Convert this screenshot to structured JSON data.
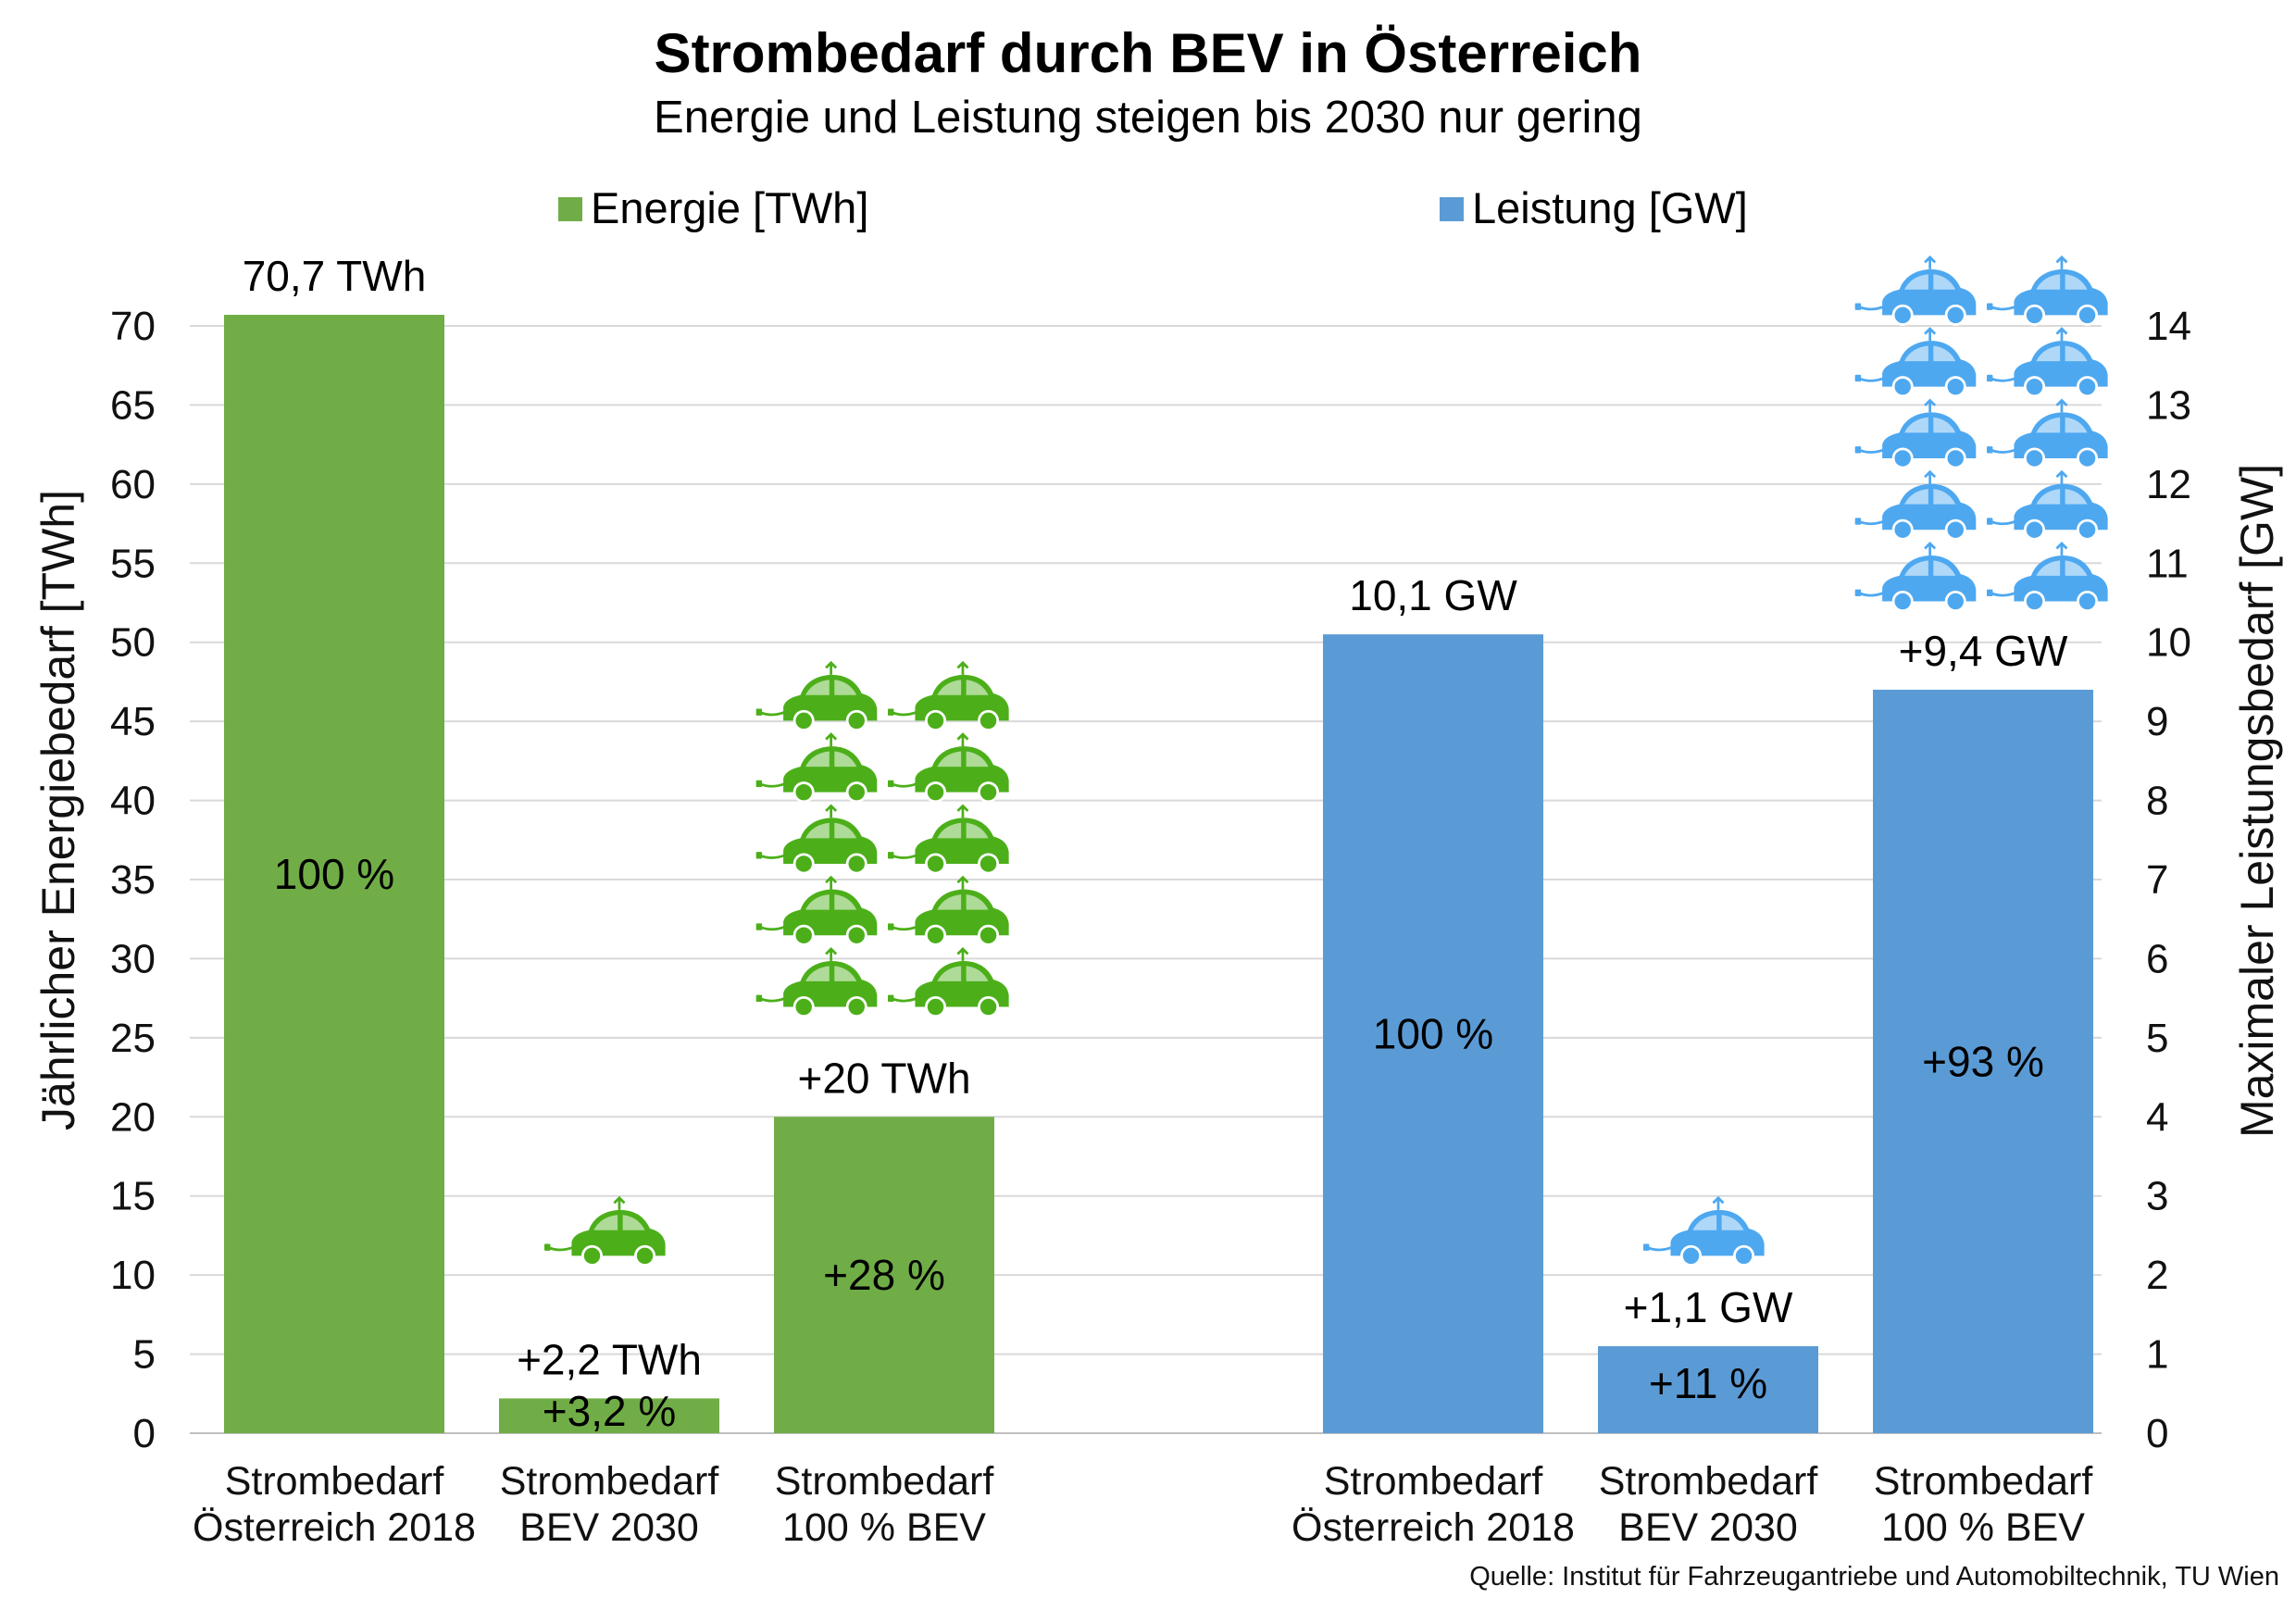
{
  "chart_data": {
    "type": "bar",
    "title": "Strombedarf durch BEV in Österreich",
    "subtitle": "Energie und Leistung steigen bis 2030 nur gering",
    "source": "Quelle: Institut für Fahrzeugantriebe  und Automobiltechnik, TU Wien",
    "legend": [
      {
        "label": "Energie [TWh]",
        "color": "#70AD47"
      },
      {
        "label": "Leistung [GW]",
        "color": "#5B9BD5"
      }
    ],
    "left_axis": {
      "title": "Jährlicher Energiebedarf [TWh]",
      "range": [
        0,
        70
      ],
      "ticks": [
        "0",
        "5",
        "10",
        "15",
        "20",
        "25",
        "30",
        "35",
        "40",
        "45",
        "50",
        "55",
        "60",
        "65",
        "70"
      ],
      "grid": true
    },
    "right_axis": {
      "title": "Maximaler Leistungsbedarf [GW]",
      "range": [
        0,
        14
      ],
      "ticks": [
        "0",
        "1",
        "2",
        "3",
        "4",
        "5",
        "6",
        "7",
        "8",
        "9",
        "10",
        "11",
        "12",
        "13",
        "14"
      ]
    },
    "series": [
      {
        "name": "Energie [TWh]",
        "axis": "left",
        "color": "#70AD47",
        "categories": [
          "Strombedarf\nÖsterreich 2018",
          "Strombedarf\nBEV 2030",
          "Strombedarf\n100 % BEV"
        ],
        "values": [
          70.7,
          2.2,
          20
        ],
        "value_labels": [
          "70,7 TWh",
          "+2,2 TWh",
          "+20 TWh"
        ],
        "percent_labels": [
          "100 %",
          "+3,2 %",
          "+28 %"
        ],
        "car_icons": [
          0,
          1,
          10
        ],
        "car_icon_color": "#4CAF1A"
      },
      {
        "name": "Leistung [GW]",
        "axis": "right",
        "color": "#5B9BD5",
        "categories": [
          "Strombedarf\nÖsterreich 2018",
          "Strombedarf\nBEV 2030",
          "Strombedarf\n100 % BEV"
        ],
        "values": [
          10.1,
          1.1,
          9.4
        ],
        "value_labels": [
          "10,1 GW",
          "+1,1 GW",
          "+9,4 GW"
        ],
        "percent_labels": [
          "100 %",
          "+11 %",
          "+93 %"
        ],
        "car_icons": [
          0,
          1,
          10
        ],
        "car_icon_color": "#4EA8F0"
      }
    ]
  }
}
